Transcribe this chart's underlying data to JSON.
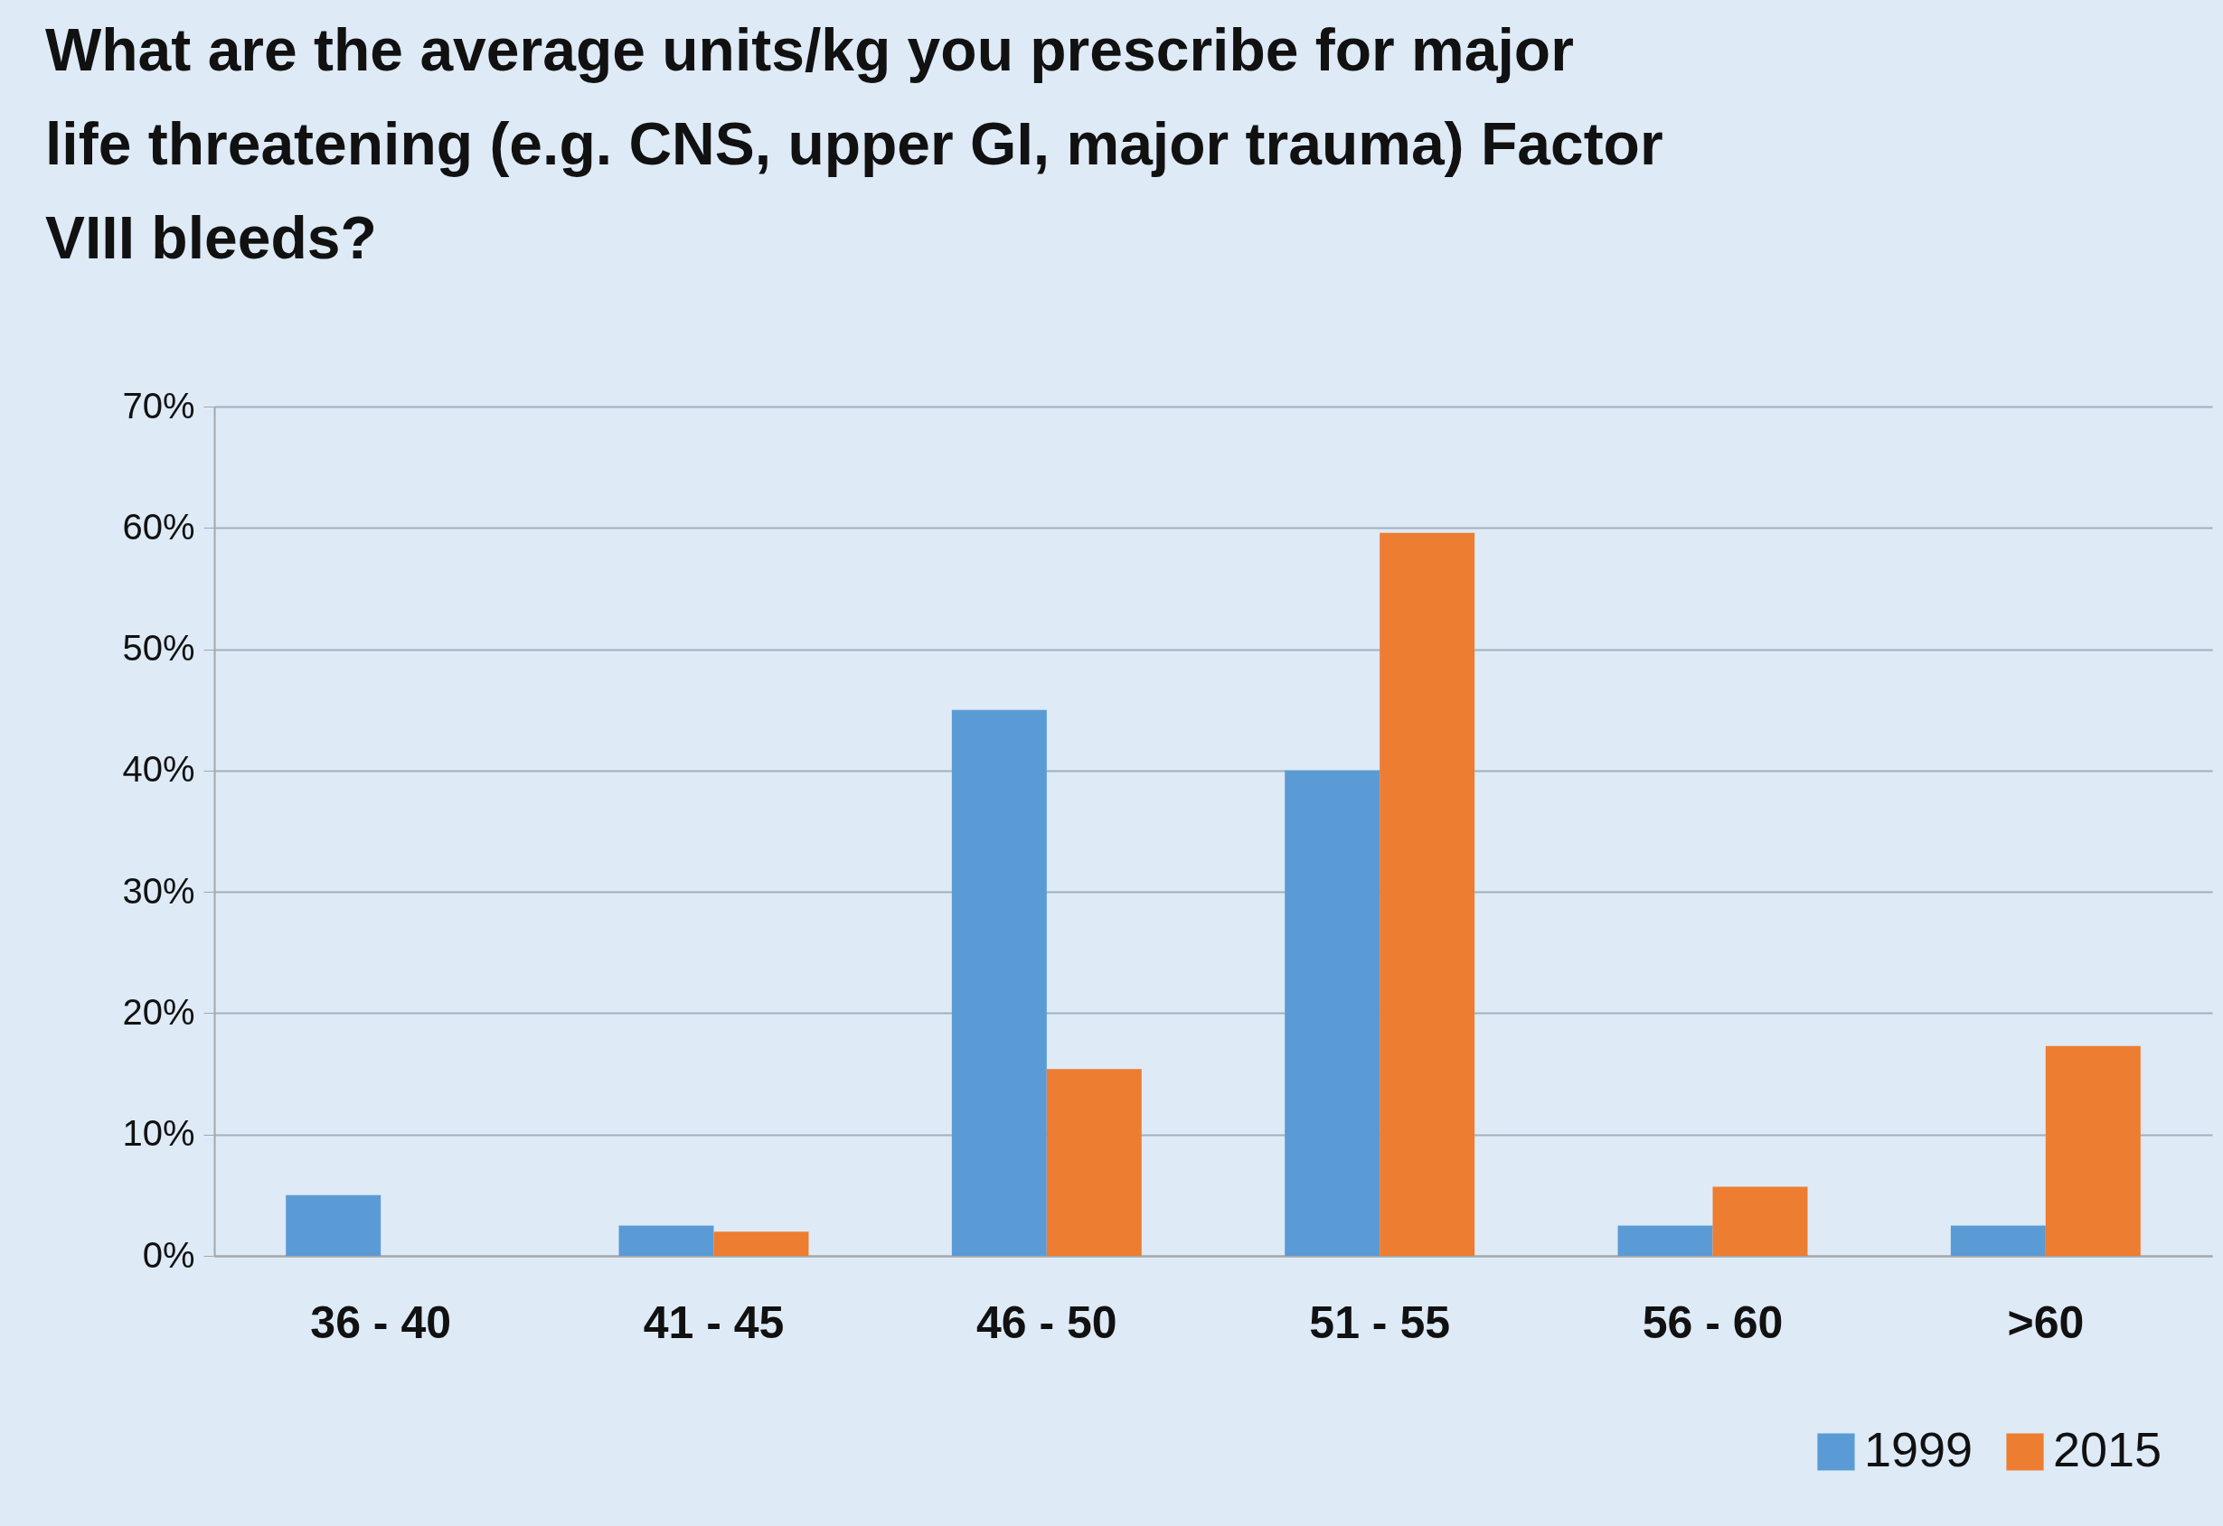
{
  "chart_data": {
    "type": "bar",
    "title": "What are the average units/kg you prescribe for major\nlife threatening (e.g. CNS, upper GI, major trauma) Factor\nVIII bleeds?",
    "categories": [
      "36 - 40",
      "41 - 45",
      "46 - 50",
      "51 - 55",
      "56 - 60",
      ">60"
    ],
    "series": [
      {
        "name": "1999",
        "color": "#5b9bd5",
        "values": [
          5,
          2.5,
          45,
          40,
          2.5,
          2.5
        ]
      },
      {
        "name": "2015",
        "color": "#ed7d31",
        "values": [
          0,
          2,
          15.4,
          59.6,
          5.7,
          17.3
        ]
      }
    ],
    "ylim": [
      0,
      70
    ],
    "yticks": [
      {
        "value": 0,
        "label": "0%"
      },
      {
        "value": 10,
        "label": "10%"
      },
      {
        "value": 20,
        "label": "20%"
      },
      {
        "value": 30,
        "label": "30%"
      },
      {
        "value": 40,
        "label": "40%"
      },
      {
        "value": 50,
        "label": "50%"
      },
      {
        "value": 60,
        "label": "60%"
      },
      {
        "value": 70,
        "label": "70%"
      }
    ],
    "grid": "y",
    "legend": "bottom right"
  }
}
